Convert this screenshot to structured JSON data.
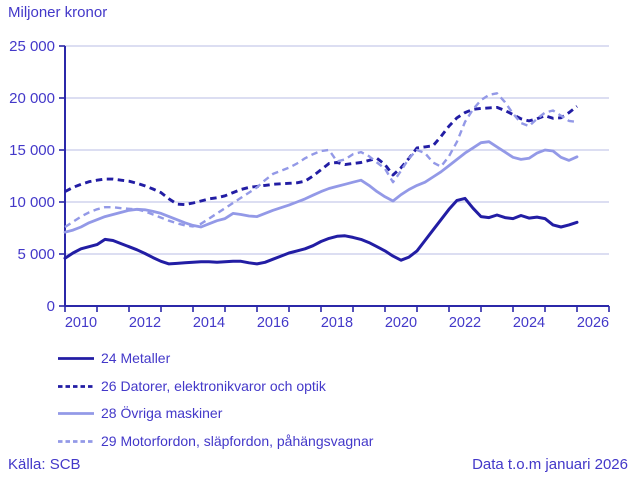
{
  "chart_data": {
    "type": "line",
    "title": "Miljoner kronor",
    "xlabel": "",
    "ylabel": "Miljoner kronor",
    "xlim": [
      2010,
      2027
    ],
    "ylim": [
      0,
      25000
    ],
    "x_start": 2010,
    "x_step": 0.25,
    "grid": true,
    "legend_position": "bottom-left",
    "y_ticks": [
      0,
      5000,
      10000,
      15000,
      20000,
      25000
    ],
    "y_tick_labels": [
      "0",
      "5 000",
      "10 000",
      "15 000",
      "20 000",
      "25 000"
    ],
    "x_label_years": [
      "2010",
      "2012",
      "2014",
      "2016",
      "2018",
      "2020",
      "2022",
      "2024",
      "2026"
    ],
    "series": [
      {
        "id": "24",
        "name": "24 Metaller",
        "color": "#221da4",
        "style": "solid",
        "values": [
          4600,
          5100,
          5500,
          5700,
          5900,
          6400,
          6300,
          6000,
          5700,
          5400,
          5050,
          4650,
          4300,
          4050,
          4100,
          4150,
          4200,
          4250,
          4250,
          4200,
          4250,
          4300,
          4300,
          4150,
          4050,
          4200,
          4500,
          4800,
          5100,
          5300,
          5500,
          5800,
          6200,
          6500,
          6700,
          6750,
          6600,
          6400,
          6100,
          5700,
          5300,
          4800,
          4400,
          4700,
          5300,
          6300,
          7300,
          8300,
          9300,
          10150,
          10350,
          9400,
          8600,
          8500,
          8750,
          8500,
          8400,
          8700,
          8450,
          8550,
          8400,
          7800,
          7600,
          7800,
          8050
        ]
      },
      {
        "id": "26",
        "name": "26 Datorer, elektronikvaror och optik",
        "color": "#221da4",
        "style": "dashed",
        "values": [
          11000,
          11400,
          11700,
          11950,
          12100,
          12200,
          12200,
          12100,
          12000,
          11800,
          11550,
          11250,
          10900,
          10300,
          9800,
          9750,
          9900,
          10100,
          10300,
          10400,
          10600,
          10900,
          11200,
          11400,
          11500,
          11600,
          11700,
          11750,
          11800,
          11850,
          12000,
          12500,
          13100,
          13700,
          13800,
          13600,
          13700,
          13800,
          14000,
          14200,
          13600,
          12600,
          13300,
          14200,
          15200,
          15300,
          15400,
          16300,
          17300,
          18100,
          18600,
          18900,
          19000,
          19050,
          19100,
          18800,
          18400,
          18000,
          17800,
          18000,
          18300,
          18050,
          18100,
          18600,
          19200
        ]
      },
      {
        "id": "28",
        "name": "28 Övriga maskiner",
        "color": "#9399e7",
        "style": "solid",
        "values": [
          7100,
          7300,
          7600,
          8000,
          8300,
          8600,
          8800,
          9000,
          9200,
          9300,
          9250,
          9100,
          8900,
          8600,
          8300,
          8000,
          7750,
          7600,
          7900,
          8200,
          8400,
          8900,
          8800,
          8650,
          8600,
          8900,
          9200,
          9450,
          9700,
          10000,
          10300,
          10650,
          11000,
          11300,
          11500,
          11700,
          11900,
          12100,
          11600,
          11000,
          10500,
          10100,
          10700,
          11200,
          11600,
          11900,
          12400,
          12900,
          13500,
          14100,
          14700,
          15200,
          15700,
          15800,
          15300,
          14800,
          14300,
          14100,
          14200,
          14700,
          15000,
          14900,
          14300,
          14000,
          14350
        ]
      },
      {
        "id": "29",
        "name": "29 Motorfordon, släpfordon, påhängsvagnar",
        "color": "#9399e7",
        "style": "dashed",
        "values": [
          7600,
          8100,
          8600,
          9000,
          9300,
          9500,
          9500,
          9400,
          9350,
          9300,
          9100,
          8800,
          8500,
          8200,
          7950,
          7750,
          7650,
          7900,
          8400,
          8900,
          9400,
          9900,
          10400,
          10900,
          11400,
          12100,
          12700,
          13000,
          13300,
          13700,
          14200,
          14600,
          14900,
          15000,
          13900,
          14100,
          14600,
          14800,
          14400,
          13800,
          13200,
          11900,
          13000,
          14200,
          15000,
          14700,
          13800,
          13400,
          14400,
          15800,
          17700,
          18900,
          19800,
          20300,
          20450,
          19600,
          18500,
          17600,
          17300,
          18000,
          18600,
          18800,
          18300,
          17800,
          17700
        ]
      }
    ]
  },
  "footer": {
    "source": "Källa: SCB",
    "note": "Data t.o.m januari 2026"
  },
  "colors": {
    "text": "#4338c9",
    "axis": "#2b28a9",
    "grid": "#c7c9ea",
    "background": "#ffffff",
    "series_dark": "#221da4",
    "series_light": "#9399e7"
  }
}
